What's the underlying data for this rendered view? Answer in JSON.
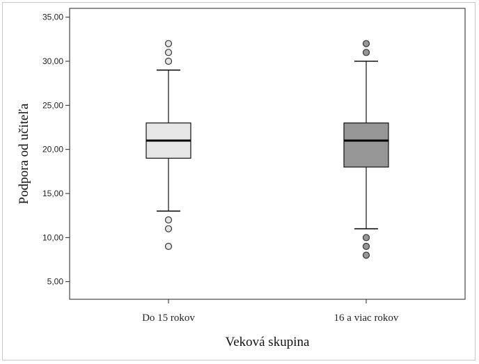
{
  "chart_data": {
    "type": "boxplot",
    "xlabel": "Veková skupina",
    "ylabel": "Podpora od učiteľa",
    "ylim": [
      3,
      36
    ],
    "yticks": [
      5,
      10,
      15,
      20,
      25,
      30,
      35
    ],
    "ytick_labels": [
      "5,00",
      "10,00",
      "15,00",
      "20,00",
      "25,00",
      "30,00",
      "35,00"
    ],
    "grid": false,
    "categories": [
      "Do 15 rokov",
      "16 a viac rokov"
    ],
    "boxes": [
      {
        "category": "Do 15 rokov",
        "whisker_low": 13,
        "q1": 19,
        "median": 21,
        "q3": 23,
        "whisker_high": 29,
        "outliers": [
          9,
          11,
          12,
          30,
          31,
          32
        ],
        "fill": "#e6e6e6"
      },
      {
        "category": "16 a viac rokov",
        "whisker_low": 11,
        "q1": 18,
        "median": 21,
        "q3": 23,
        "whisker_high": 30,
        "outliers": [
          8,
          9,
          10,
          31,
          32
        ],
        "fill": "#969696"
      }
    ]
  }
}
